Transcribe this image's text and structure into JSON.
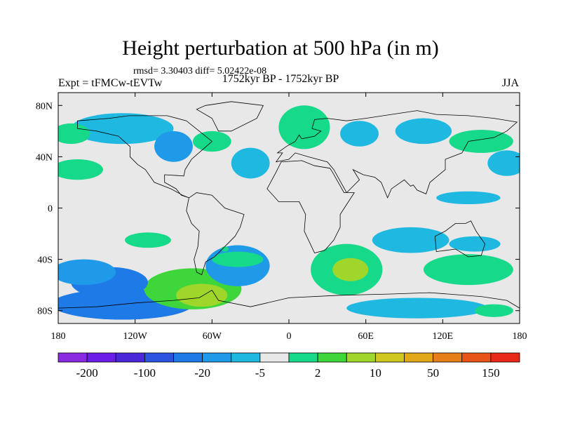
{
  "chart_data": {
    "type": "heatmap",
    "title": "Height perturbation at 500 hPa (in m)",
    "stats_line": "rmsd= 3.30403 diff= 5.02422e-08",
    "left_string": "Expt = tFMCw-tEVTw",
    "center_string": "1752kyr BP - 1752kyr BP",
    "right_string": "JJA",
    "xlim": [
      -180,
      180
    ],
    "ylim": [
      -90,
      90
    ],
    "x_ticks": [
      {
        "value": -180,
        "label": "180"
      },
      {
        "value": -120,
        "label": "120W"
      },
      {
        "value": -60,
        "label": "60W"
      },
      {
        "value": 0,
        "label": "0"
      },
      {
        "value": 60,
        "label": "60E"
      },
      {
        "value": 120,
        "label": "120E"
      },
      {
        "value": 180,
        "label": "180"
      }
    ],
    "y_ticks": [
      {
        "value": 80,
        "label": "80N"
      },
      {
        "value": 40,
        "label": "40N"
      },
      {
        "value": 0,
        "label": "0"
      },
      {
        "value": -40,
        "label": "40S"
      },
      {
        "value": -80,
        "label": "80S"
      }
    ],
    "legend": {
      "colors": [
        "#8a2be2",
        "#6a1ee6",
        "#4a28d8",
        "#2b54e0",
        "#1e7ae6",
        "#1e9ae8",
        "#1fb8e0",
        "#e8e8e8",
        "#17d98a",
        "#3ed63a",
        "#9fd62a",
        "#d0c81e",
        "#e0a818",
        "#e67e18",
        "#e85418",
        "#e82818"
      ],
      "labels": [
        "-200",
        "-100",
        "-20",
        "-5",
        "2",
        "10",
        "50",
        "150"
      ]
    },
    "regions": [
      {
        "lon": -130,
        "lat": -75,
        "rx": 55,
        "ry": 12,
        "value": -10
      },
      {
        "lon": -75,
        "lat": -63,
        "rx": 38,
        "ry": 16,
        "value": 8
      },
      {
        "lon": -68,
        "lat": -68,
        "rx": 20,
        "ry": 9,
        "value": 12
      },
      {
        "lon": -140,
        "lat": -58,
        "rx": 30,
        "ry": 12,
        "value": -10
      },
      {
        "lon": -160,
        "lat": -50,
        "rx": 25,
        "ry": 10,
        "value": -6
      },
      {
        "lon": -40,
        "lat": -45,
        "rx": 25,
        "ry": 16,
        "value": -8
      },
      {
        "lon": -110,
        "lat": -25,
        "rx": 18,
        "ry": 6,
        "value": 3
      },
      {
        "lon": -50,
        "lat": -32,
        "rx": 3,
        "ry": 2,
        "value": 3
      },
      {
        "lon": 45,
        "lat": -48,
        "rx": 28,
        "ry": 20,
        "value": 6
      },
      {
        "lon": 48,
        "lat": -48,
        "rx": 14,
        "ry": 9,
        "value": 12
      },
      {
        "lon": 95,
        "lat": -25,
        "rx": 30,
        "ry": 10,
        "value": -4
      },
      {
        "lon": 140,
        "lat": -48,
        "rx": 35,
        "ry": 12,
        "value": 4
      },
      {
        "lon": 145,
        "lat": -28,
        "rx": 20,
        "ry": 6,
        "value": -4
      },
      {
        "lon": 100,
        "lat": -78,
        "rx": 55,
        "ry": 8,
        "value": -4
      },
      {
        "lon": 160,
        "lat": -80,
        "rx": 15,
        "ry": 5,
        "value": 4
      },
      {
        "lon": 12,
        "lat": 63,
        "rx": 20,
        "ry": 17,
        "value": 4
      },
      {
        "lon": 55,
        "lat": 58,
        "rx": 15,
        "ry": 10,
        "value": -4
      },
      {
        "lon": 105,
        "lat": 60,
        "rx": 22,
        "ry": 10,
        "value": -4
      },
      {
        "lon": 150,
        "lat": 52,
        "rx": 25,
        "ry": 9,
        "value": 4
      },
      {
        "lon": 170,
        "lat": 35,
        "rx": 15,
        "ry": 10,
        "value": -4
      },
      {
        "lon": -130,
        "lat": 62,
        "rx": 40,
        "ry": 12,
        "value": -4
      },
      {
        "lon": -90,
        "lat": 48,
        "rx": 15,
        "ry": 12,
        "value": -6
      },
      {
        "lon": -60,
        "lat": 52,
        "rx": 15,
        "ry": 8,
        "value": 4
      },
      {
        "lon": -30,
        "lat": 35,
        "rx": 15,
        "ry": 12,
        "value": -4
      },
      {
        "lon": -165,
        "lat": 30,
        "rx": 20,
        "ry": 8,
        "value": 4
      },
      {
        "lon": -170,
        "lat": 58,
        "rx": 15,
        "ry": 8,
        "value": 4
      },
      {
        "lon": 140,
        "lat": 8,
        "rx": 25,
        "ry": 5,
        "value": -3
      },
      {
        "lon": -40,
        "lat": -40,
        "rx": 20,
        "ry": 6,
        "value": 3
      }
    ]
  }
}
